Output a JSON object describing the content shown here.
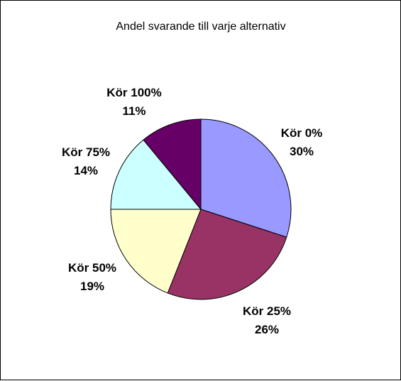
{
  "chart_data": {
    "type": "pie",
    "title": "Andel svarande till varje alternativ",
    "categories": [
      "Kör 0%",
      "Kör 25%",
      "Kör 50%",
      "Kör 75%",
      "Kör 100%"
    ],
    "values": [
      30,
      26,
      19,
      14,
      11
    ],
    "value_labels": [
      "30%",
      "26%",
      "19%",
      "14%",
      "11%"
    ],
    "colors": [
      "#9999ff",
      "#993366",
      "#ffffcc",
      "#ccffff",
      "#660066"
    ],
    "start_angle_deg": 0,
    "direction": "clockwise",
    "legend": "none",
    "label_position": "outside"
  }
}
